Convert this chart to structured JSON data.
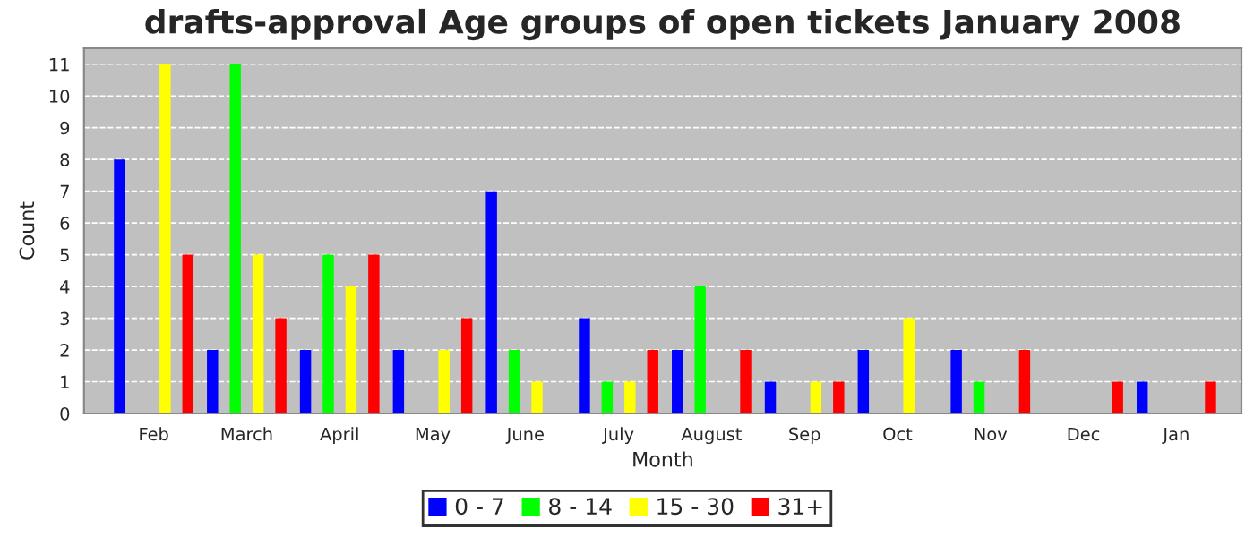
{
  "chart_data": {
    "type": "bar",
    "title": "drafts-approval Age groups of open tickets January 2008",
    "xlabel": "Month",
    "ylabel": "Count",
    "categories": [
      "Feb",
      "March",
      "April",
      "May",
      "June",
      "July",
      "August",
      "Sep",
      "Oct",
      "Nov",
      "Dec",
      "Jan"
    ],
    "series": [
      {
        "name": "0 - 7",
        "color": "#0000ff",
        "values": [
          8,
          2,
          2,
          2,
          7,
          3,
          2,
          1,
          2,
          2,
          0,
          1
        ]
      },
      {
        "name": "8 - 14",
        "color": "#00ff00",
        "values": [
          0,
          11,
          5,
          0,
          2,
          1,
          4,
          0,
          0,
          1,
          0,
          0
        ]
      },
      {
        "name": "15 - 30",
        "color": "#ffff00",
        "values": [
          11,
          5,
          4,
          2,
          1,
          1,
          0,
          1,
          3,
          0,
          0,
          0
        ]
      },
      {
        "name": "31+",
        "color": "#ff0000",
        "values": [
          5,
          3,
          5,
          3,
          0,
          2,
          2,
          1,
          0,
          2,
          1,
          1
        ]
      }
    ],
    "ylim": [
      0,
      11.5
    ],
    "yticks": [
      0,
      1,
      2,
      3,
      4,
      5,
      6,
      7,
      8,
      9,
      10,
      11
    ],
    "grid": "y",
    "legend": "bottom"
  }
}
